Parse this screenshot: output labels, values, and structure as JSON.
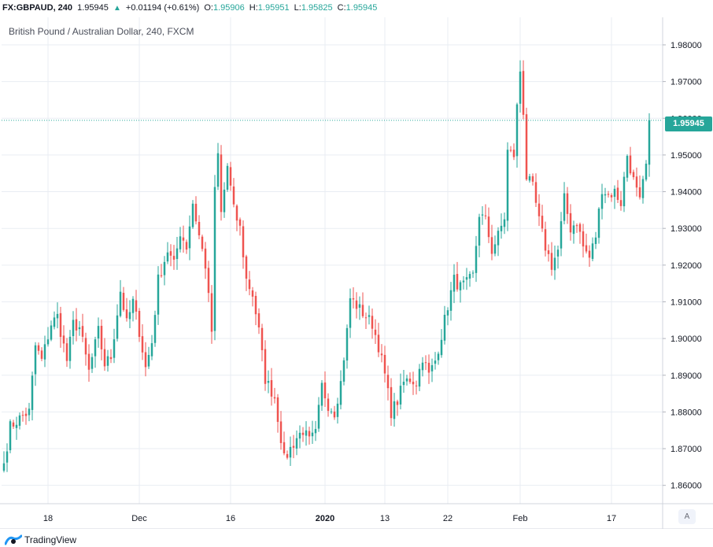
{
  "header": {
    "symbol": "FX:GBPAUD, 240",
    "last": "1.95945",
    "arrow": "▲",
    "change": "+0.01194 (+0.61%)",
    "o_label": "O:",
    "o_value": "1.95906",
    "h_label": "H:",
    "h_value": "1.95951",
    "l_label": "L:",
    "l_value": "1.95825",
    "c_label": "C:",
    "c_value": "1.95945"
  },
  "footer": {
    "brand": "TradingView"
  },
  "axis_mode": "A",
  "colors": {
    "up": "#26a69a",
    "down": "#ef5350",
    "grid": "#e9edf3"
  },
  "chart_data": {
    "type": "candlestick",
    "title": "British Pound / Australian Dollar, 240, FXCM",
    "ylim": [
      1.855,
      1.9875
    ],
    "y_ticks": [
      "1.98000",
      "1.97000",
      "1.96000",
      "1.95000",
      "1.94000",
      "1.93000",
      "1.92000",
      "1.91000",
      "1.90000",
      "1.89000",
      "1.88000",
      "1.87000",
      "1.86000"
    ],
    "x_ticks": [
      {
        "label": "18",
        "bar": 14
      },
      {
        "label": "Dec",
        "bar": 43
      },
      {
        "label": "16",
        "bar": 72
      },
      {
        "label": "2020",
        "bar": 102
      },
      {
        "label": "13",
        "bar": 121
      },
      {
        "label": "22",
        "bar": 141
      },
      {
        "label": "Feb",
        "bar": 164
      },
      {
        "label": "17",
        "bar": 193
      }
    ],
    "last_price": "1.95945",
    "bar_count": 206,
    "close_anchors": [
      [
        0,
        1.866
      ],
      [
        2,
        1.876
      ],
      [
        6,
        1.879
      ],
      [
        8,
        1.88
      ],
      [
        10,
        1.898
      ],
      [
        12,
        1.894
      ],
      [
        15,
        1.904
      ],
      [
        17,
        1.906
      ],
      [
        20,
        1.894
      ],
      [
        22,
        1.904
      ],
      [
        24,
        1.903
      ],
      [
        27,
        1.891
      ],
      [
        30,
        1.902
      ],
      [
        32,
        1.893
      ],
      [
        34,
        1.895
      ],
      [
        37,
        1.913
      ],
      [
        39,
        1.904
      ],
      [
        41,
        1.91
      ],
      [
        43,
        1.902
      ],
      [
        45,
        1.892
      ],
      [
        47,
        1.899
      ],
      [
        49,
        1.916
      ],
      [
        52,
        1.924
      ],
      [
        54,
        1.92
      ],
      [
        56,
        1.929
      ],
      [
        58,
        1.925
      ],
      [
        60,
        1.937
      ],
      [
        62,
        1.928
      ],
      [
        64,
        1.92
      ],
      [
        66,
        1.902
      ],
      [
        67,
        1.94
      ],
      [
        68,
        1.95
      ],
      [
        69,
        1.934
      ],
      [
        71,
        1.947
      ],
      [
        73,
        1.935
      ],
      [
        75,
        1.93
      ],
      [
        77,
        1.916
      ],
      [
        79,
        1.912
      ],
      [
        81,
        1.902
      ],
      [
        83,
        1.889
      ],
      [
        86,
        1.884
      ],
      [
        88,
        1.873
      ],
      [
        89,
        1.867
      ],
      [
        91,
        1.87
      ],
      [
        93,
        1.873
      ],
      [
        95,
        1.875
      ],
      [
        97,
        1.872
      ],
      [
        99,
        1.874
      ],
      [
        101,
        1.887
      ],
      [
        103,
        1.882
      ],
      [
        105,
        1.88
      ],
      [
        107,
        1.888
      ],
      [
        109,
        1.902
      ],
      [
        110,
        1.911
      ],
      [
        113,
        1.908
      ],
      [
        115,
        1.906
      ],
      [
        117,
        1.904
      ],
      [
        119,
        1.898
      ],
      [
        121,
        1.89
      ],
      [
        123,
        1.88
      ],
      [
        125,
        1.883
      ],
      [
        127,
        1.888
      ],
      [
        129,
        1.889
      ],
      [
        131,
        1.888
      ],
      [
        133,
        1.895
      ],
      [
        135,
        1.89
      ],
      [
        137,
        1.894
      ],
      [
        139,
        1.901
      ],
      [
        141,
        1.909
      ],
      [
        143,
        1.916
      ],
      [
        145,
        1.914
      ],
      [
        147,
        1.915
      ],
      [
        149,
        1.917
      ],
      [
        151,
        1.934
      ],
      [
        153,
        1.932
      ],
      [
        155,
        1.924
      ],
      [
        157,
        1.928
      ],
      [
        159,
        1.933
      ],
      [
        160,
        1.951
      ],
      [
        162,
        1.95
      ],
      [
        163,
        1.963
      ],
      [
        164,
        1.973
      ],
      [
        165,
        1.962
      ],
      [
        166,
        1.944
      ],
      [
        168,
        1.941
      ],
      [
        170,
        1.932
      ],
      [
        172,
        1.925
      ],
      [
        174,
        1.92
      ],
      [
        176,
        1.924
      ],
      [
        178,
        1.938
      ],
      [
        180,
        1.93
      ],
      [
        182,
        1.932
      ],
      [
        184,
        1.925
      ],
      [
        186,
        1.922
      ],
      [
        188,
        1.928
      ],
      [
        190,
        1.941
      ],
      [
        192,
        1.939
      ],
      [
        194,
        1.94
      ],
      [
        196,
        1.937
      ],
      [
        198,
        1.95
      ],
      [
        200,
        1.943
      ],
      [
        202,
        1.937
      ],
      [
        204,
        1.947
      ],
      [
        205,
        1.95945
      ]
    ]
  }
}
